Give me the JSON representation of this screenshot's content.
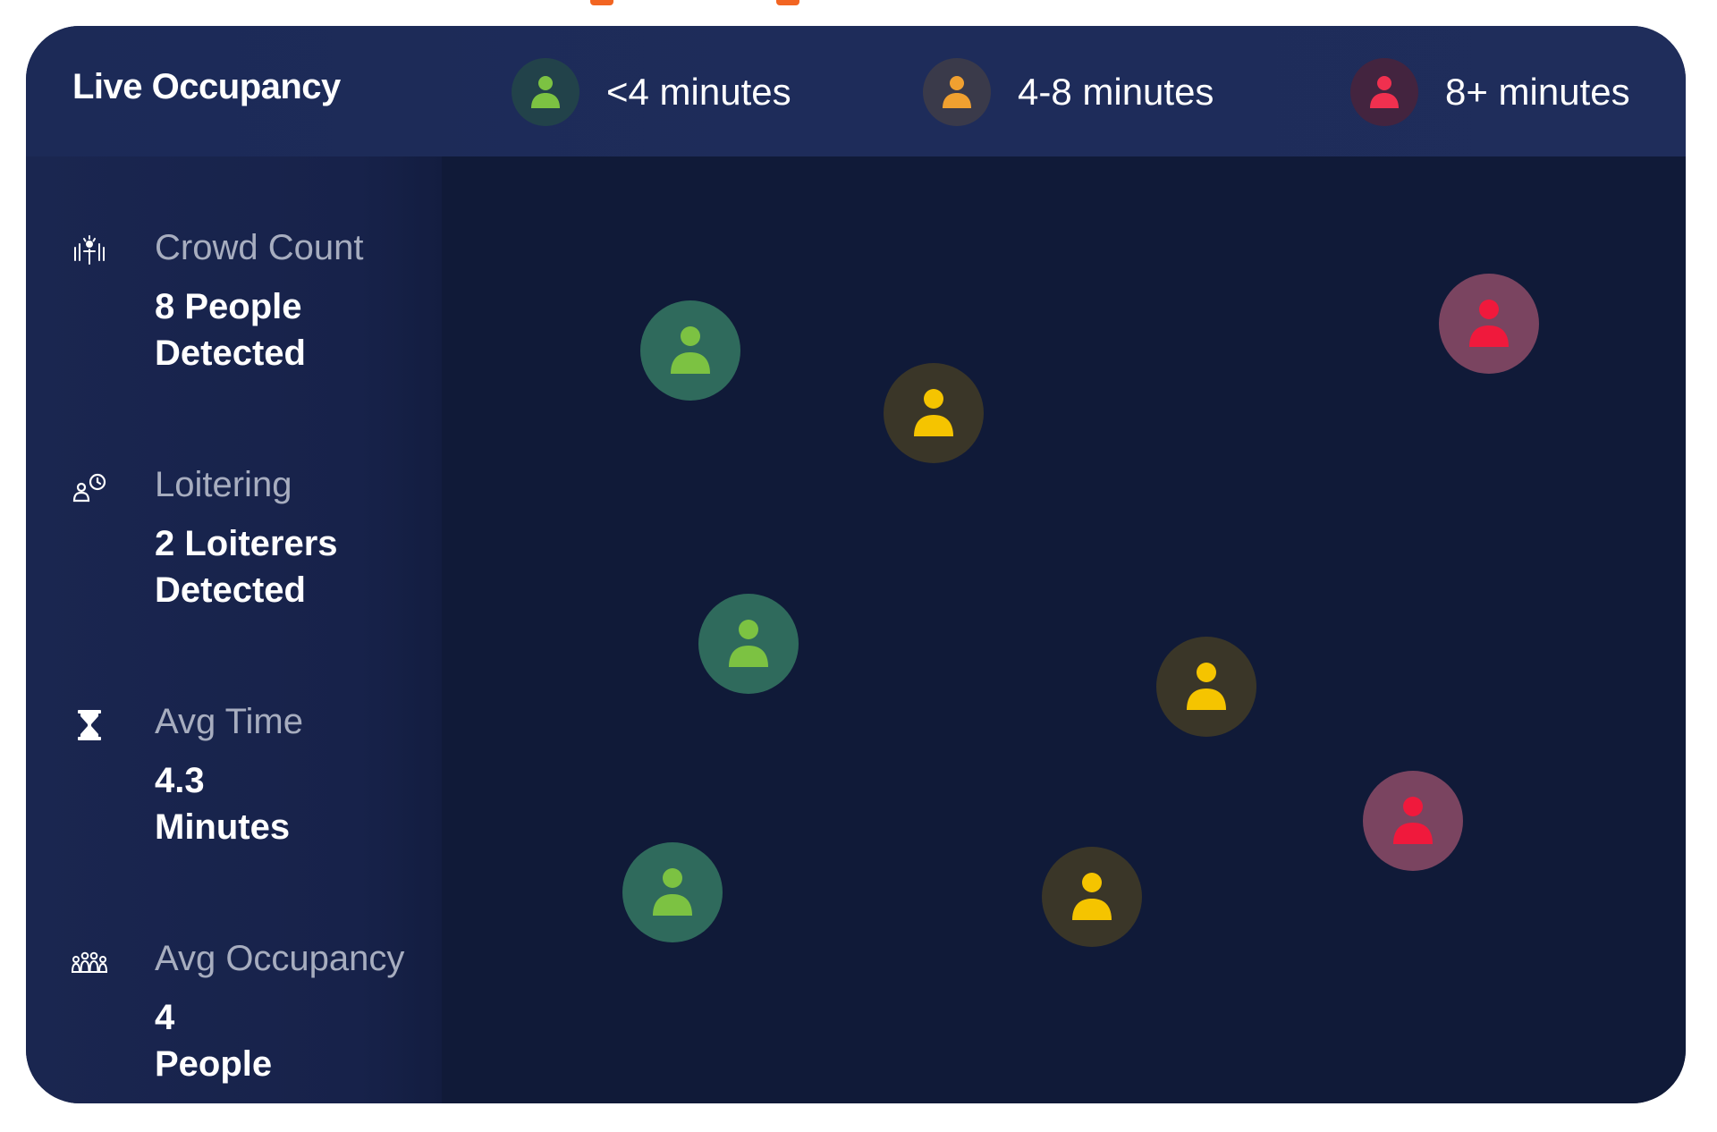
{
  "title": "Live Occupancy",
  "legend": [
    {
      "label": "<4 minutes",
      "category": "short",
      "icon": "person-icon"
    },
    {
      "label": "4-8 minutes",
      "category": "medium",
      "icon": "person-icon"
    },
    {
      "label": "8+ minutes",
      "category": "long",
      "icon": "person-icon"
    }
  ],
  "colors": {
    "short": {
      "ring": "#2f6a5c",
      "glyph": "#7cc242",
      "legend_ring": "#22424a"
    },
    "medium": {
      "ring": "#3a3628",
      "glyph": "#f5c400",
      "legend_ring": "#3a3a4a",
      "legend_glyph": "#f0a030"
    },
    "long": {
      "ring": "#7a4460",
      "glyph": "#f0193c",
      "legend_ring": "#43243f",
      "legend_glyph": "#f0304f"
    },
    "accent": "#f26522"
  },
  "stats": [
    {
      "label": "Crowd Count",
      "value_line1": "8 People",
      "value_line2": "Detected",
      "icon": "crowd-icon"
    },
    {
      "label": "Loitering",
      "value_line1": "2 Loiterers",
      "value_line2": "Detected",
      "icon": "loiter-clock-icon"
    },
    {
      "label": "Avg Time",
      "value_line1": "4.3",
      "value_line2": "Minutes",
      "icon": "hourglass-icon"
    },
    {
      "label": "Avg Occupancy",
      "value_line1": "4",
      "value_line2": "People",
      "icon": "group-icon"
    }
  ],
  "people": [
    {
      "category": "short"
    },
    {
      "category": "medium"
    },
    {
      "category": "long"
    },
    {
      "category": "short"
    },
    {
      "category": "medium"
    },
    {
      "category": "long"
    },
    {
      "category": "short"
    },
    {
      "category": "medium"
    }
  ]
}
